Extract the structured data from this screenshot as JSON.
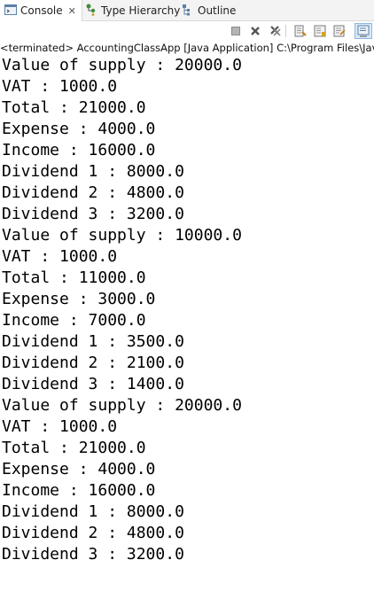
{
  "tabs": [
    {
      "label": "Console",
      "icon": "console-icon",
      "active": true
    },
    {
      "label": "Type Hierarchy",
      "icon": "type-hierarchy-icon",
      "active": false
    },
    {
      "label": "Outline",
      "icon": "outline-icon",
      "active": false
    }
  ],
  "status": {
    "text": "<terminated> AccountingClassApp [Java Application] C:\\Program Files\\Java\\"
  },
  "console_lines": [
    "Value of supply : 20000.0",
    "VAT : 1000.0",
    "Total : 21000.0",
    "Expense : 4000.0",
    "Income : 16000.0",
    "Dividend 1 : 8000.0",
    "Dividend 2 : 4800.0",
    "Dividend 3 : 3200.0",
    "Value of supply : 10000.0",
    "VAT : 1000.0",
    "Total : 11000.0",
    "Expense : 3000.0",
    "Income : 7000.0",
    "Dividend 1 : 3500.0",
    "Dividend 2 : 2100.0",
    "Dividend 3 : 1400.0",
    "Value of supply : 20000.0",
    "VAT : 1000.0",
    "Total : 21000.0",
    "Expense : 4000.0",
    "Income : 16000.0",
    "Dividend 1 : 8000.0",
    "Dividend 2 : 4800.0",
    "Dividend 3 : 3200.0"
  ]
}
